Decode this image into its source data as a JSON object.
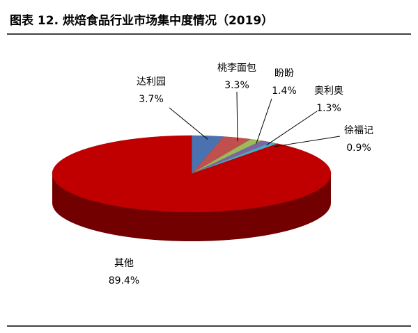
{
  "chart_data": {
    "type": "pie",
    "title": "图表 12. 烘焙食品行业市场集中度情况（2019）",
    "categories": [
      "达利园",
      "桃李面包",
      "盼盼",
      "奥利奥",
      "徐福记",
      "其他"
    ],
    "values": [
      3.7,
      3.3,
      1.4,
      1.3,
      0.9,
      89.4
    ],
    "value_labels": [
      "3.7%",
      "3.3%",
      "1.4%",
      "1.3%",
      "0.9%",
      "89.4%"
    ],
    "colors": [
      "#4a72b0",
      "#c0504d",
      "#9bbb59",
      "#8064a2",
      "#4bacc6",
      "#c00000"
    ]
  }
}
